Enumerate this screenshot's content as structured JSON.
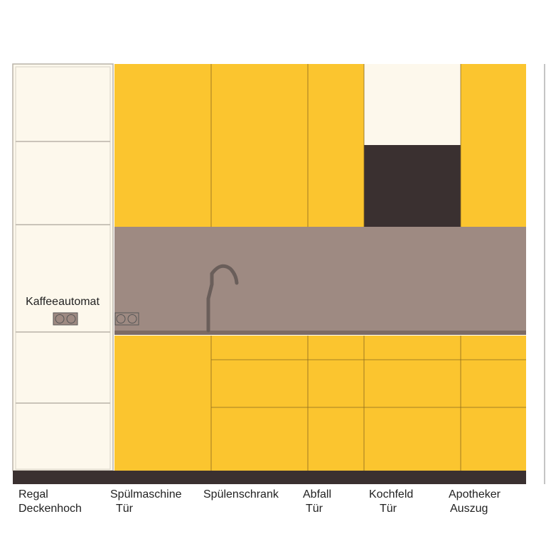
{
  "appliance_label": "Kaffeeautomat",
  "cabinets": [
    {
      "lines": [
        "Regal",
        "Deckenhoch"
      ]
    },
    {
      "lines": [
        "Spülmaschine",
        "Tür"
      ]
    },
    {
      "lines": [
        "Spülenschrank"
      ]
    },
    {
      "lines": [
        "Abfall",
        "Tür"
      ]
    },
    {
      "lines": [
        "Kochfeld",
        "Tür"
      ]
    },
    {
      "lines": [
        "Apotheker",
        "Auszug"
      ]
    }
  ]
}
